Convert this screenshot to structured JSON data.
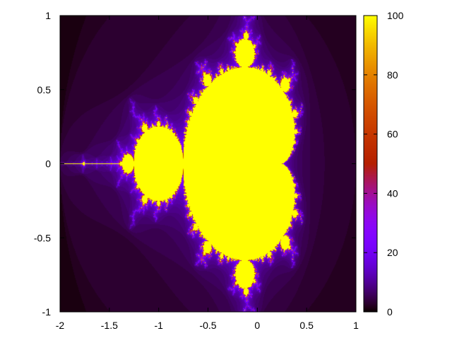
{
  "chart_data": {
    "type": "heatmap",
    "title": "",
    "xlabel": "",
    "ylabel": "",
    "description_of_data": null,
    "x_range": [
      -2,
      1
    ],
    "y_range": [
      -1,
      1
    ],
    "x_ticks": [
      -2,
      -1.5,
      -1,
      -0.5,
      0,
      0.5,
      1
    ],
    "x_tick_labels": [
      "-2",
      "-1.5",
      "-1",
      "-0.5",
      "0",
      "0.5",
      "1"
    ],
    "y_ticks": [
      -1,
      -0.5,
      0,
      0.5,
      1
    ],
    "y_tick_labels": [
      "-1",
      "-0.5",
      "0",
      "0.5",
      "1"
    ],
    "max_iterations": 100,
    "colorbar": {
      "range": [
        0,
        100
      ],
      "ticks": [
        0,
        20,
        40,
        60,
        80,
        100
      ],
      "tick_labels": [
        "0",
        "20",
        "40",
        "60",
        "80",
        "100"
      ],
      "colormap": "gnuplot-rgbformulae-7-5-15",
      "colors": [
        "#000000",
        "#3c0a5a",
        "#7800ff",
        "#b41400",
        "#e06400",
        "#ffff00"
      ]
    },
    "grid": false,
    "legend": "none"
  }
}
